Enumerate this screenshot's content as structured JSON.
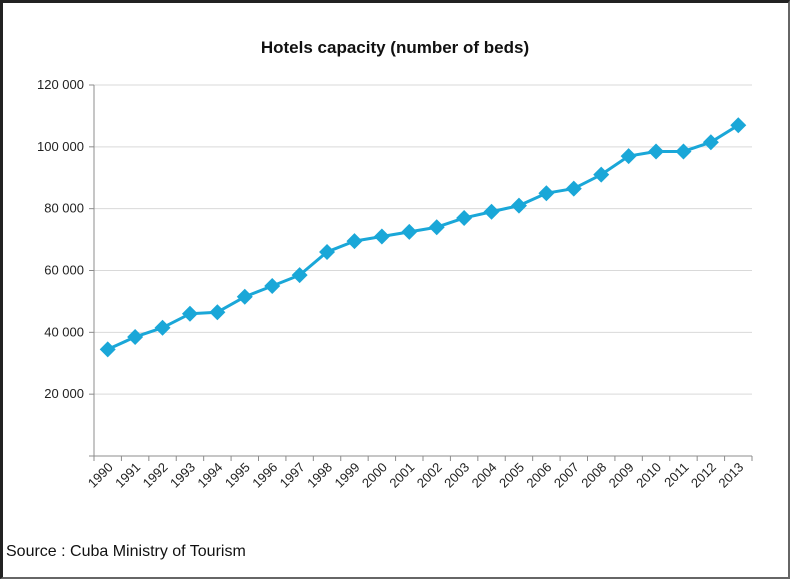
{
  "chart_data": {
    "type": "line",
    "title": "Hotels capacity (number of beds)",
    "xlabel": "",
    "ylabel": "",
    "categories": [
      "1990",
      "1991",
      "1992",
      "1993",
      "1994",
      "1995",
      "1996",
      "1997",
      "1998",
      "1999",
      "2000",
      "2001",
      "2002",
      "2003",
      "2004",
      "2005",
      "2006",
      "2007",
      "2008",
      "2009",
      "2010",
      "2011",
      "2012",
      "2013"
    ],
    "y_tick_labels": [
      "20 000",
      "40 000",
      "60 000",
      "80 000",
      "100 000",
      "120 000"
    ],
    "y_tick_values": [
      20000,
      40000,
      60000,
      80000,
      100000,
      120000
    ],
    "ylim": [
      0,
      120000
    ],
    "grid": true,
    "series": [
      {
        "values": [
          34500,
          38500,
          41500,
          46000,
          46500,
          51500,
          55000,
          58500,
          66000,
          69500,
          71000,
          72500,
          74000,
          77000,
          79000,
          81000,
          85000,
          86500,
          91000,
          97000,
          98500,
          98500,
          101500,
          107000
        ],
        "color": "#1aa7d8",
        "marker": "diamond"
      }
    ]
  },
  "source": "Source : Cuba Ministry of Tourism",
  "colors": {
    "line": "#1aa7d8",
    "grid": "#d9d9d9",
    "axis": "#8c8c8c"
  }
}
